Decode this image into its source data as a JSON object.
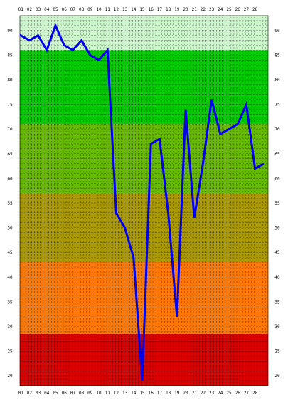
{
  "chart_data": {
    "type": "line",
    "title": "",
    "xlabel": "",
    "ylabel": "",
    "x_labels": [
      "01",
      "02",
      "03",
      "04",
      "05",
      "06",
      "07",
      "08",
      "09",
      "10",
      "11",
      "12",
      "13",
      "14",
      "15",
      "16",
      "17",
      "18",
      "19",
      "20",
      "21",
      "22",
      "23",
      "24",
      "25",
      "26",
      "27",
      "28"
    ],
    "y_ticks": [
      20,
      25,
      30,
      35,
      40,
      45,
      50,
      55,
      60,
      65,
      70,
      75,
      80,
      85,
      90
    ],
    "ylim": [
      18,
      93
    ],
    "grid": true,
    "series": [
      {
        "color": "#0000ee",
        "x": [
          "00",
          "01",
          "02",
          "03",
          "04",
          "05",
          "06",
          "07",
          "08",
          "09",
          "10",
          "11",
          "12",
          "13",
          "14",
          "15",
          "16",
          "17",
          "18",
          "19",
          "20",
          "21",
          "22",
          "23",
          "24",
          "25",
          "26",
          "27",
          "28",
          "29"
        ],
        "values": [
          90,
          89,
          88,
          89,
          86,
          91,
          87,
          86,
          88,
          85,
          84,
          86,
          53,
          50,
          44,
          19,
          67,
          68,
          53,
          32,
          74,
          52,
          63,
          76,
          69,
          70,
          71,
          75,
          62,
          63
        ]
      }
    ],
    "bands": [
      {
        "from": 86,
        "to": 93,
        "color": "#ccf5cc"
      },
      {
        "from": 71,
        "to": 86,
        "color": "#00cc00"
      },
      {
        "from": 57,
        "to": 71,
        "color": "#66bb00"
      },
      {
        "from": 43,
        "to": 57,
        "color": "#aa9900"
      },
      {
        "from": 28.5,
        "to": 43,
        "color": "#ff7700"
      },
      {
        "from": 18,
        "to": 28.5,
        "color": "#dd0000"
      }
    ]
  }
}
